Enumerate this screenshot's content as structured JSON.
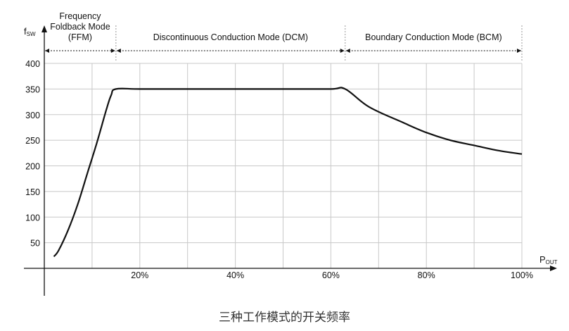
{
  "caption": "三种工作模式的开关频率",
  "chart_data": {
    "type": "line",
    "title": "",
    "ylabel": "f",
    "ylabel_sub": "SW",
    "xlabel": "P",
    "xlabel_sub": "OUT",
    "xlim": [
      0,
      100
    ],
    "ylim": [
      0,
      400
    ],
    "yticks": [
      50,
      100,
      150,
      200,
      250,
      300,
      350,
      400
    ],
    "xticks": [
      20,
      40,
      60,
      80,
      100
    ],
    "xtick_labels": [
      "20%",
      "40%",
      "60%",
      "80%",
      "100%"
    ],
    "grid": true,
    "line_color": "#111111",
    "regions": [
      {
        "label_lines": [
          "Frequency",
          "Foldback Mode",
          "(FFM)"
        ],
        "start": 0,
        "end": 15
      },
      {
        "label_lines": [
          "Discontinuous Conduction Mode (DCM)"
        ],
        "start": 15,
        "end": 63
      },
      {
        "label_lines": [
          "Boundary Conduction Mode (BCM)"
        ],
        "start": 63,
        "end": 100
      }
    ],
    "series": [
      {
        "x": [
          2,
          3,
          5,
          7,
          9,
          11,
          13,
          14,
          15,
          20,
          30,
          40,
          50,
          60,
          63,
          68,
          75,
          80,
          85,
          90,
          95,
          100
        ],
        "y": [
          23,
          35,
          75,
          125,
          185,
          245,
          310,
          338,
          350,
          350,
          350,
          350,
          350,
          350,
          350,
          315,
          285,
          265,
          250,
          240,
          230,
          223
        ]
      }
    ]
  }
}
